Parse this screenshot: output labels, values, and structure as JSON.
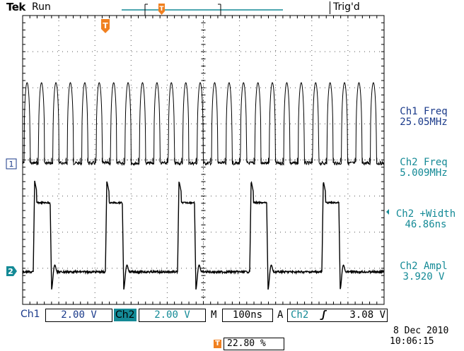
{
  "header": {
    "brand": "Tek",
    "run_state": "Run",
    "trigger_state": "Trig'd"
  },
  "trace_markers": {
    "ch1": "1",
    "ch2": "2",
    "trigger": "T"
  },
  "measurements": [
    {
      "label": "Ch1 Freq",
      "value": "25.05MHz",
      "channel": "ch1"
    },
    {
      "label": "Ch2 Freq",
      "value": "5.009MHz",
      "channel": "ch2"
    },
    {
      "label": "Ch2 +Width",
      "value": "46.86ns",
      "channel": "ch2"
    },
    {
      "label": "Ch2 Ampl",
      "value": "3.920 V",
      "channel": "ch2"
    }
  ],
  "channels": {
    "ch1": {
      "label": "Ch1",
      "scale": "2.00 V"
    },
    "ch2": {
      "label": "Ch2",
      "scale": "2.00 V"
    }
  },
  "timebase": {
    "mode": "M",
    "value": "100ns"
  },
  "trigger": {
    "mode": "A",
    "source": "Ch2",
    "slope": "ʃ",
    "level": "3.08 V",
    "position": "22.80 %"
  },
  "timestamp": {
    "date": "8 Dec  2010",
    "time": "10:06:15"
  },
  "colors": {
    "ch1": "#000000",
    "ch2": "#148a96",
    "trigger": "#f08020",
    "ch1_scale": "#1a3a8a"
  },
  "screen": {
    "h_divisions": 10,
    "v_divisions": 8,
    "ch1_pulses_per_div": 2.505,
    "ch2_pulses_per_div": 0.5009,
    "ch2_pulse_width_div": 0.4686
  }
}
